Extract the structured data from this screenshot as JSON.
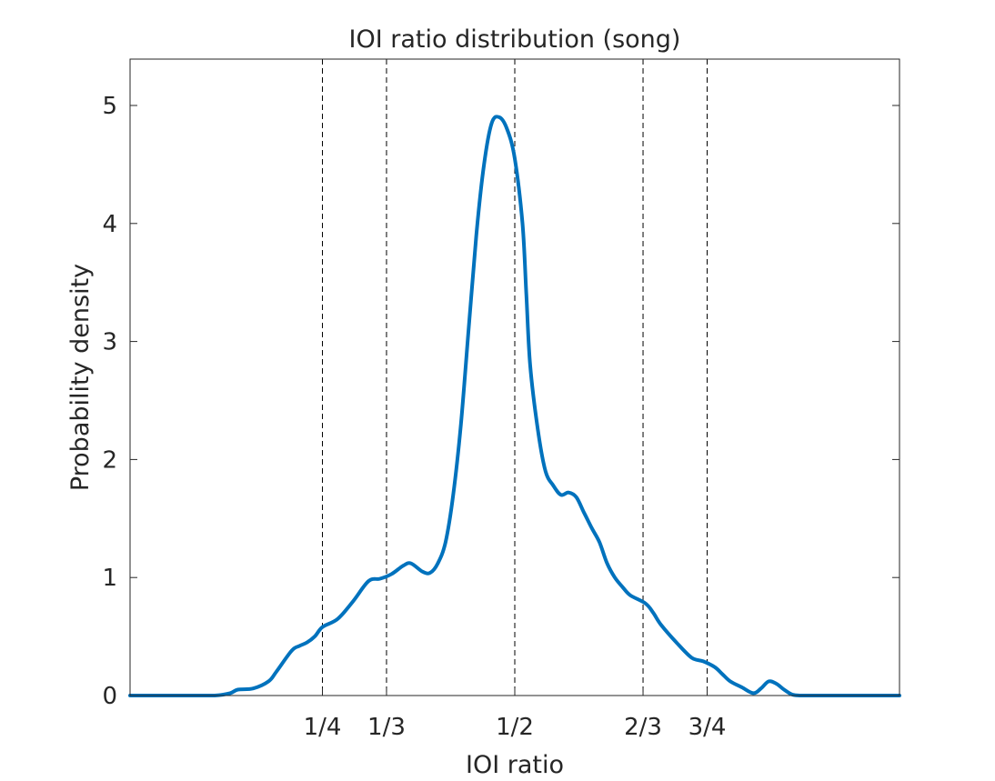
{
  "chart_data": {
    "type": "line",
    "title": "IOI ratio distribution (song)",
    "xlabel": "IOI ratio",
    "ylabel": "Probability density",
    "xlim": [
      0,
      1
    ],
    "ylim": [
      0,
      5.4
    ],
    "grid": false,
    "legend": "none",
    "line_color": "#0072BD",
    "reference_line_color": "#000000",
    "x_ticks": [
      {
        "value": 0.25,
        "label": "1/4"
      },
      {
        "value": 0.3333,
        "label": "1/3"
      },
      {
        "value": 0.5,
        "label": "1/2"
      },
      {
        "value": 0.6667,
        "label": "2/3"
      },
      {
        "value": 0.75,
        "label": "3/4"
      }
    ],
    "y_ticks": [
      {
        "value": 0,
        "label": "0"
      },
      {
        "value": 1,
        "label": "1"
      },
      {
        "value": 2,
        "label": "2"
      },
      {
        "value": 3,
        "label": "3"
      },
      {
        "value": 4,
        "label": "4"
      },
      {
        "value": 5,
        "label": "5"
      }
    ],
    "reference_lines_x": [
      0.25,
      0.3333,
      0.5,
      0.6667,
      0.75
    ],
    "series": [
      {
        "x": [
          0.0,
          0.08,
          0.11,
          0.13,
          0.14,
          0.16,
          0.18,
          0.19,
          0.21,
          0.22,
          0.23,
          0.24,
          0.25,
          0.27,
          0.29,
          0.31,
          0.325,
          0.34,
          0.355,
          0.365,
          0.38,
          0.39,
          0.4,
          0.41,
          0.42,
          0.43,
          0.44,
          0.45,
          0.46,
          0.47,
          0.48,
          0.49,
          0.5,
          0.51,
          0.515,
          0.52,
          0.53,
          0.54,
          0.55,
          0.56,
          0.57,
          0.58,
          0.59,
          0.6,
          0.61,
          0.62,
          0.63,
          0.64,
          0.65,
          0.67,
          0.68,
          0.69,
          0.71,
          0.73,
          0.745,
          0.76,
          0.77,
          0.78,
          0.795,
          0.81,
          0.82,
          0.83,
          0.84,
          0.85,
          0.86,
          0.87,
          0.88,
          0.89,
          0.9,
          0.92,
          1.0
        ],
        "y": [
          0.0,
          0.0,
          0.0,
          0.02,
          0.05,
          0.06,
          0.12,
          0.2,
          0.38,
          0.42,
          0.45,
          0.5,
          0.58,
          0.65,
          0.8,
          0.97,
          0.99,
          1.03,
          1.1,
          1.12,
          1.05,
          1.04,
          1.12,
          1.3,
          1.7,
          2.3,
          3.1,
          3.9,
          4.5,
          4.85,
          4.9,
          4.8,
          4.55,
          4.0,
          3.4,
          2.8,
          2.25,
          1.9,
          1.78,
          1.7,
          1.72,
          1.68,
          1.55,
          1.42,
          1.3,
          1.12,
          1.0,
          0.92,
          0.85,
          0.78,
          0.7,
          0.6,
          0.45,
          0.32,
          0.29,
          0.24,
          0.18,
          0.12,
          0.07,
          0.02,
          0.06,
          0.12,
          0.1,
          0.05,
          0.01,
          0.0,
          0.0,
          0.0,
          0.0,
          0.0,
          0.0
        ]
      }
    ]
  }
}
